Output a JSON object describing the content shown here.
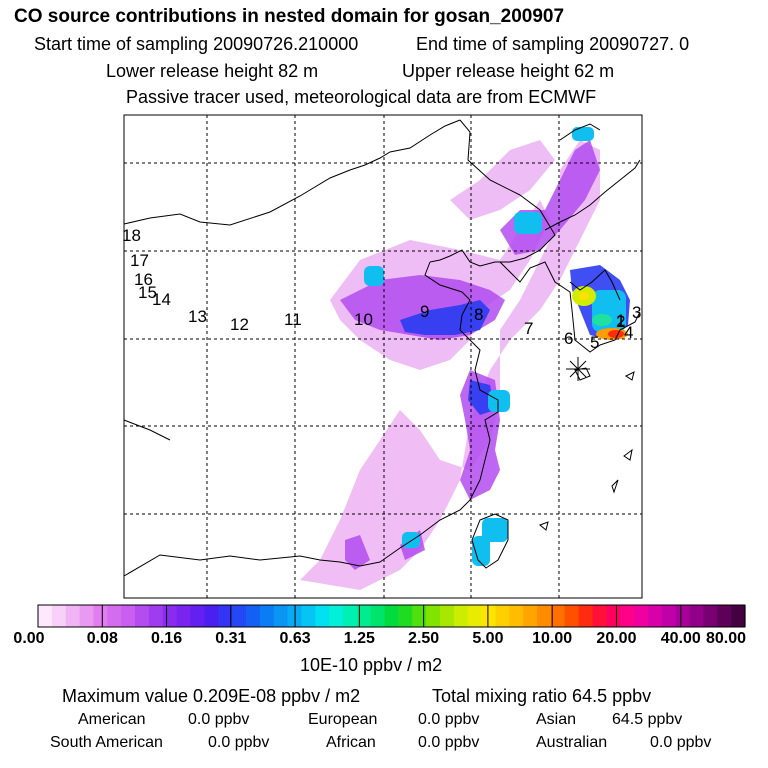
{
  "header": {
    "title": "CO  source contributions in nested domain for gosan_200907",
    "start_label": "Start time of sampling 20090726.210000",
    "end_label": "End time of sampling 20090727.     0",
    "lower_label": "Lower release height   82 m",
    "upper_label": "Upper release height   62 m",
    "tracer_note": "Passive tracer used, meteorological data are from ECMWF"
  },
  "colorbar": {
    "tick_labels": [
      "0.00",
      "0.08",
      "0.16",
      "0.31",
      "0.63",
      "1.25",
      "2.50",
      "5.00",
      "10.00",
      "20.00",
      "40.00",
      "80.00"
    ],
    "colors": [
      "#fde8fd",
      "#f8d0f8",
      "#f0b4f4",
      "#e89af0",
      "#e07ef0",
      "#d46cf0",
      "#c95ef0",
      "#b44cf0",
      "#a03cf0",
      "#8a2cf0",
      "#7a24f0",
      "#6420f0",
      "#4a20f0",
      "#3434f4",
      "#2448f4",
      "#1460f4",
      "#0a7cf4",
      "#0a94f4",
      "#08acf4",
      "#06c4f4",
      "#00e0f0",
      "#00f0d8",
      "#00f0b4",
      "#00ec90",
      "#00e46c",
      "#00dc40",
      "#20dc20",
      "#50e010",
      "#80e400",
      "#a8e800",
      "#ccec00",
      "#e8ec00",
      "#ffe400",
      "#ffd000",
      "#ffbc00",
      "#ffa400",
      "#ff8c00",
      "#ff7000",
      "#ff5000",
      "#ff2c10",
      "#ff1038",
      "#ff0060",
      "#ff0088",
      "#f000a0",
      "#d800a8",
      "#c000a8",
      "#a80098",
      "#900088",
      "#780070",
      "#5e0058",
      "#440040"
    ],
    "unit": "10E-10 ppbv / m2"
  },
  "stats": {
    "max_value": "Maximum value  0.209E-08 ppbv / m2",
    "total_mixing": "Total mixing ratio       64.5 ppbv",
    "regions": [
      {
        "name": "American",
        "value": "0.0 ppbv"
      },
      {
        "name": "European",
        "value": "0.0 ppbv"
      },
      {
        "name": "Asian",
        "value": "64.5 ppbv"
      },
      {
        "name": "South American",
        "value": "0.0 ppbv"
      },
      {
        "name": "African",
        "value": "0.0 ppbv"
      },
      {
        "name": "Australian",
        "value": "0.0 ppbv"
      }
    ]
  },
  "chart_data": {
    "type": "heatmap",
    "title": "CO  source contributions in nested domain for gosan_200907",
    "value_scale": [
      "0.00",
      "0.08",
      "0.16",
      "0.31",
      "0.63",
      "1.25",
      "2.50",
      "5.00",
      "10.00",
      "20.00",
      "40.00",
      "80.00"
    ],
    "unit": "10E-10 ppbv / m2",
    "grid": true,
    "receptor": "gosan (asterisk marker)",
    "region_labels": [
      "1",
      "2",
      "3",
      "4",
      "5",
      "6",
      "7",
      "8",
      "9",
      "10",
      "11",
      "12",
      "13",
      "14",
      "15",
      "16",
      "17",
      "18"
    ]
  }
}
